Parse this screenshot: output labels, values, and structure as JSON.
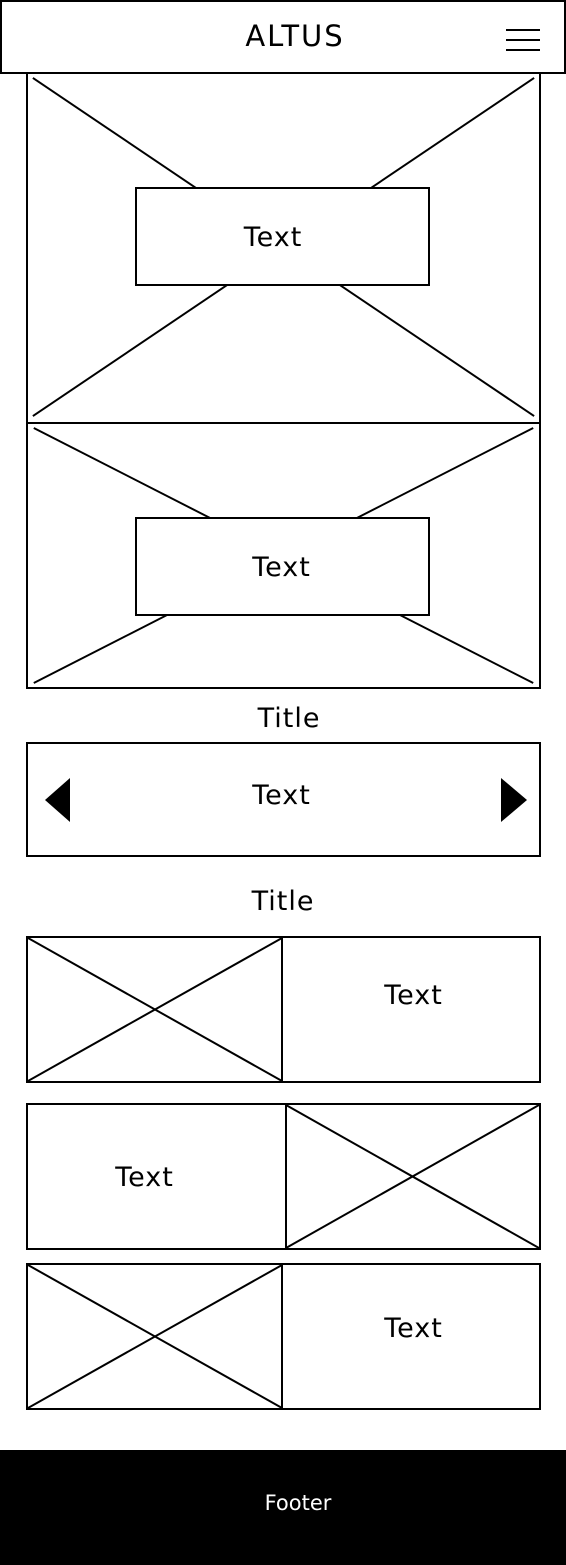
{
  "header": {
    "brand": "ALTUS",
    "menu_icon": "hamburger-menu-icon"
  },
  "hero": [
    {
      "text": "Text",
      "image": "placeholder-image"
    },
    {
      "text": "Text",
      "image": "placeholder-image"
    }
  ],
  "carousel": {
    "title": "Title",
    "text": "Text",
    "prev_icon": "triangle-left-icon",
    "next_icon": "triangle-right-icon"
  },
  "feature_list": {
    "title": "Title",
    "items": [
      {
        "text": "Text",
        "image_side": "left"
      },
      {
        "text": "Text",
        "image_side": "right"
      },
      {
        "text": "Text",
        "image_side": "left"
      }
    ]
  },
  "footer": {
    "label": "Footer"
  },
  "colors": {
    "stroke": "#000000",
    "background": "#ffffff",
    "footer_background": "#000000",
    "footer_text": "#ffffff"
  }
}
